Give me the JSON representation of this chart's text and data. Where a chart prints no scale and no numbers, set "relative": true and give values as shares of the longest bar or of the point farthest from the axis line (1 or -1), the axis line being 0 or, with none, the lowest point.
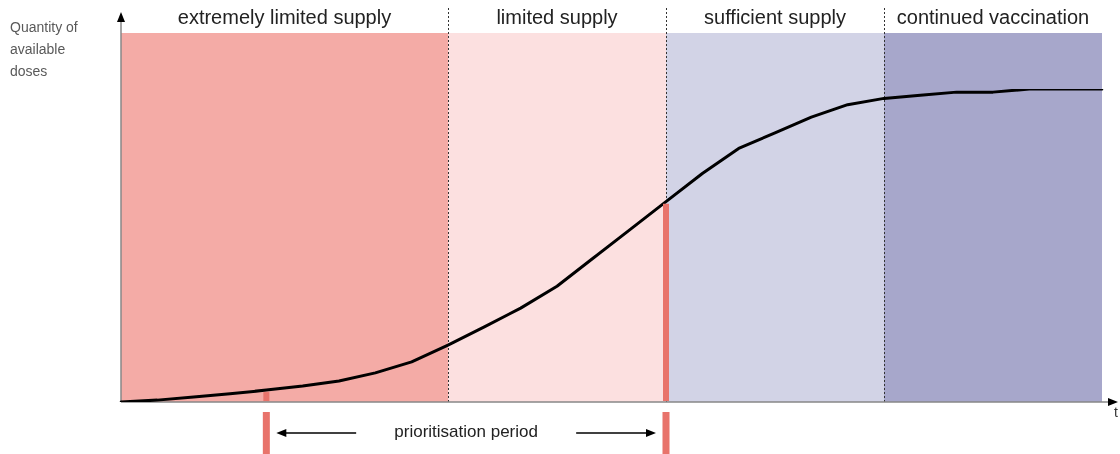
{
  "chart_data": {
    "type": "line",
    "relative": true,
    "xlabel": "t",
    "ylabel": "Quantity of available doses",
    "legend": false,
    "grid": "x",
    "marker": "none",
    "line_style": "solid",
    "categories": [
      null,
      null,
      null,
      null,
      null,
      null,
      null,
      null,
      null,
      null,
      null,
      null,
      null,
      null,
      null,
      null,
      null,
      null,
      null,
      null,
      null,
      null,
      null,
      null,
      null,
      null,
      null,
      null
    ],
    "series": [
      {
        "color": "#000000",
        "values": [
          0,
          0.006,
          0.016,
          0.026,
          0.038,
          0.051,
          0.067,
          0.093,
          0.128,
          0.182,
          0.24,
          0.3,
          0.37,
          0.46,
          0.55,
          0.64,
          0.73,
          0.81,
          0.86,
          0.91,
          0.95,
          0.97,
          0.98,
          0.99,
          0.99,
          1,
          1,
          1
        ]
      }
    ],
    "annotations": [
      "extremely limited supply",
      "limited supply",
      "sufficient supply",
      "continued vaccination",
      "prioritisation period"
    ]
  }
}
